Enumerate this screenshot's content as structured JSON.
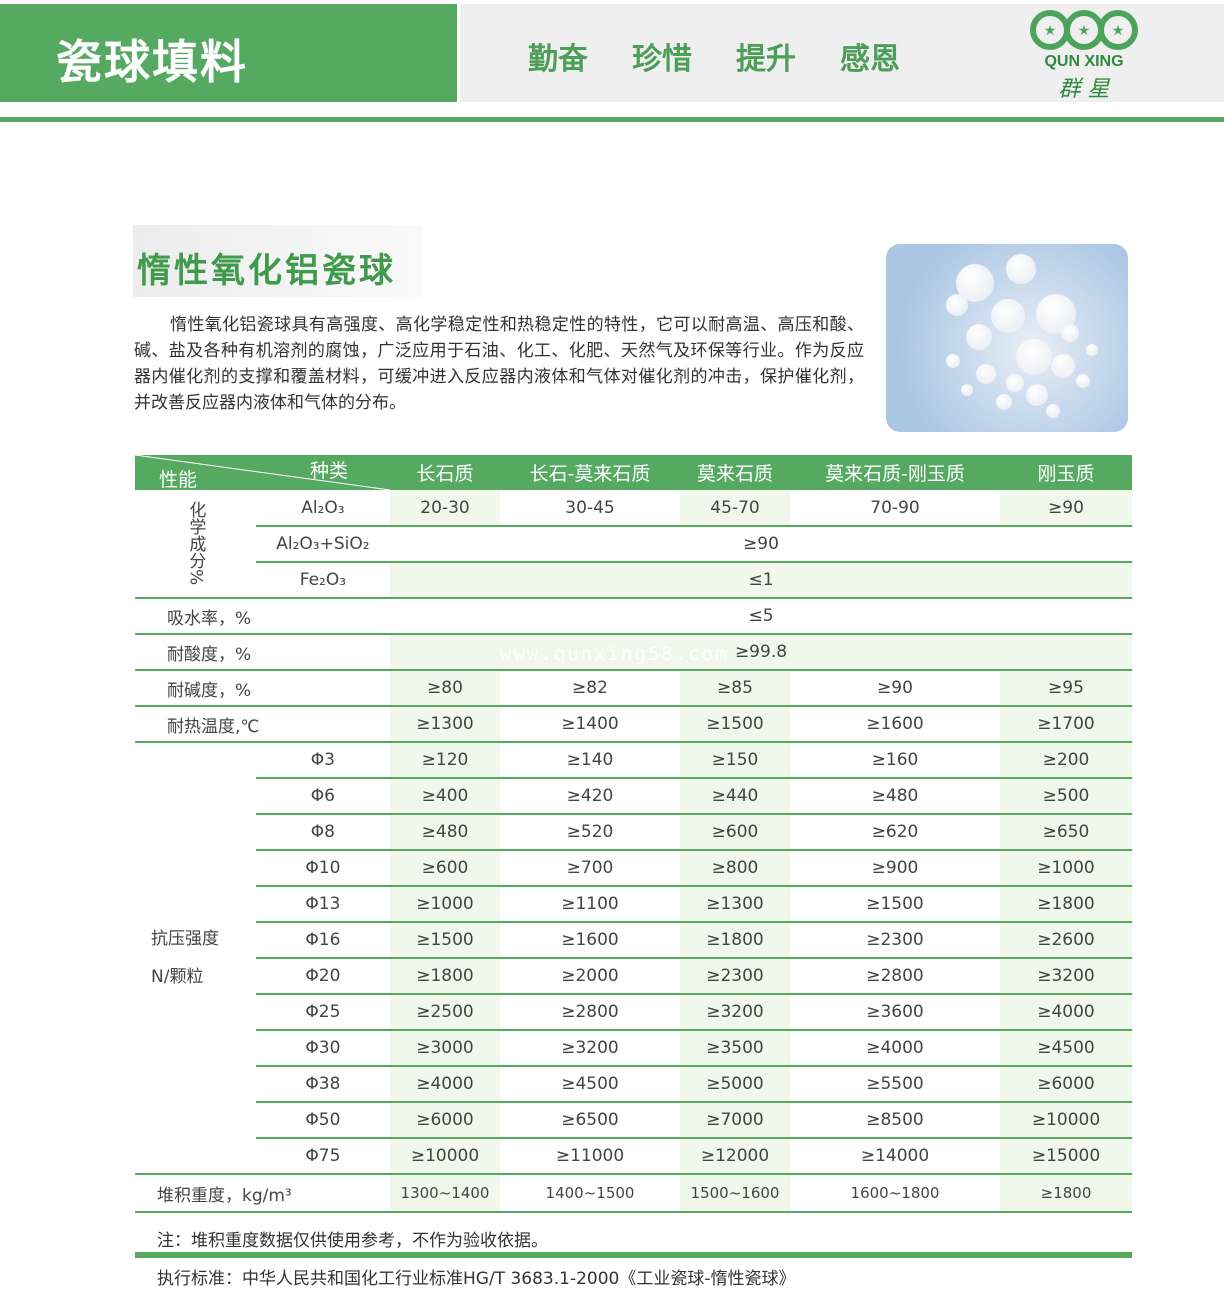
{
  "header": {
    "title": "瓷球填料",
    "motto": [
      "勤奋",
      "珍惜",
      "提升",
      "感恩"
    ],
    "logo_text_en": "QUN XING",
    "logo_text_cn": "群 星",
    "brand_color": "#55a961"
  },
  "product": {
    "title": "惰性氧化铝瓷球",
    "description": "惰性氧化铝瓷球具有高强度、高化学稳定性和热稳定性的特性，它可以耐高温、高压和酸、碱、盐及各种有机溶剂的腐蚀，广泛应用于石油、化工、化肥、天然气及环保等行业。作为反应器内催化剂的支撑和覆盖材料，可缓冲进入反应器内液体和气体对催化剂的冲击，保护催化剂，并改善反应器内液体和气体的分布。"
  },
  "watermark": "www.qunxing58.com",
  "table": {
    "corner_top": "种类",
    "corner_bottom": "性能",
    "columns": [
      "长石质",
      "长石-莫来石质",
      "莫来石质",
      "莫来石质-刚玉质",
      "刚玉质"
    ],
    "chem_label": "化学成分%",
    "chem_rows": [
      {
        "name": "Al₂O₃",
        "values": [
          "20-30",
          "30-45",
          "45-70",
          "70-90",
          "≥90"
        ]
      },
      {
        "name": "Al₂O₃+SiO₂",
        "merged": "≥90"
      },
      {
        "name": "Fe₂O₃",
        "merged": "≤1"
      }
    ],
    "simple_rows": [
      {
        "name": "吸水率，%",
        "merged": "≤5"
      },
      {
        "name": "耐酸度，%",
        "merged": "≥99.8"
      },
      {
        "name": "耐碱度，%",
        "values": [
          "≥80",
          "≥82",
          "≥85",
          "≥90",
          "≥95"
        ]
      },
      {
        "name": "耐热温度,℃",
        "values": [
          "≥1300",
          "≥1400",
          "≥1500",
          "≥1600",
          "≥1700"
        ]
      }
    ],
    "strength_label": "抗压强度",
    "strength_unit": "N/颗粒",
    "strength_rows": [
      {
        "size": "Φ3",
        "values": [
          "≥120",
          "≥140",
          "≥150",
          "≥160",
          "≥200"
        ]
      },
      {
        "size": "Φ6",
        "values": [
          "≥400",
          "≥420",
          "≥440",
          "≥480",
          "≥500"
        ]
      },
      {
        "size": "Φ8",
        "values": [
          "≥480",
          "≥520",
          "≥600",
          "≥620",
          "≥650"
        ]
      },
      {
        "size": "Φ10",
        "values": [
          "≥600",
          "≥700",
          "≥800",
          "≥900",
          "≥1000"
        ]
      },
      {
        "size": "Φ13",
        "values": [
          "≥1000",
          "≥1100",
          "≥1300",
          "≥1500",
          "≥1800"
        ]
      },
      {
        "size": "Φ16",
        "values": [
          "≥1500",
          "≥1600",
          "≥1800",
          "≥2300",
          "≥2600"
        ]
      },
      {
        "size": "Φ20",
        "values": [
          "≥1800",
          "≥2000",
          "≥2300",
          "≥2800",
          "≥3200"
        ]
      },
      {
        "size": "Φ25",
        "values": [
          "≥2500",
          "≥2800",
          "≥3200",
          "≥3600",
          "≥4000"
        ]
      },
      {
        "size": "Φ30",
        "values": [
          "≥3000",
          "≥3200",
          "≥3500",
          "≥4000",
          "≥4500"
        ]
      },
      {
        "size": "Φ38",
        "values": [
          "≥4000",
          "≥4500",
          "≥5000",
          "≥5500",
          "≥6000"
        ]
      },
      {
        "size": "Φ50",
        "values": [
          "≥6000",
          "≥6500",
          "≥7000",
          "≥8500",
          "≥10000"
        ]
      },
      {
        "size": "Φ75",
        "values": [
          "≥10000",
          "≥11000",
          "≥12000",
          "≥14000",
          "≥15000"
        ]
      }
    ],
    "density_row": {
      "name": "堆积重度，kg/m³",
      "values": [
        "1300~1400",
        "1400~1500",
        "1500~1600",
        "1600~1800",
        "≥1800"
      ]
    }
  },
  "note": "注：堆积重度数据仅供使用参考，不作为验收依据。",
  "standard": "执行标准：中华人民共和国化工行业标准HG/T 3683.1-2000《工业瓷球-惰性瓷球》"
}
